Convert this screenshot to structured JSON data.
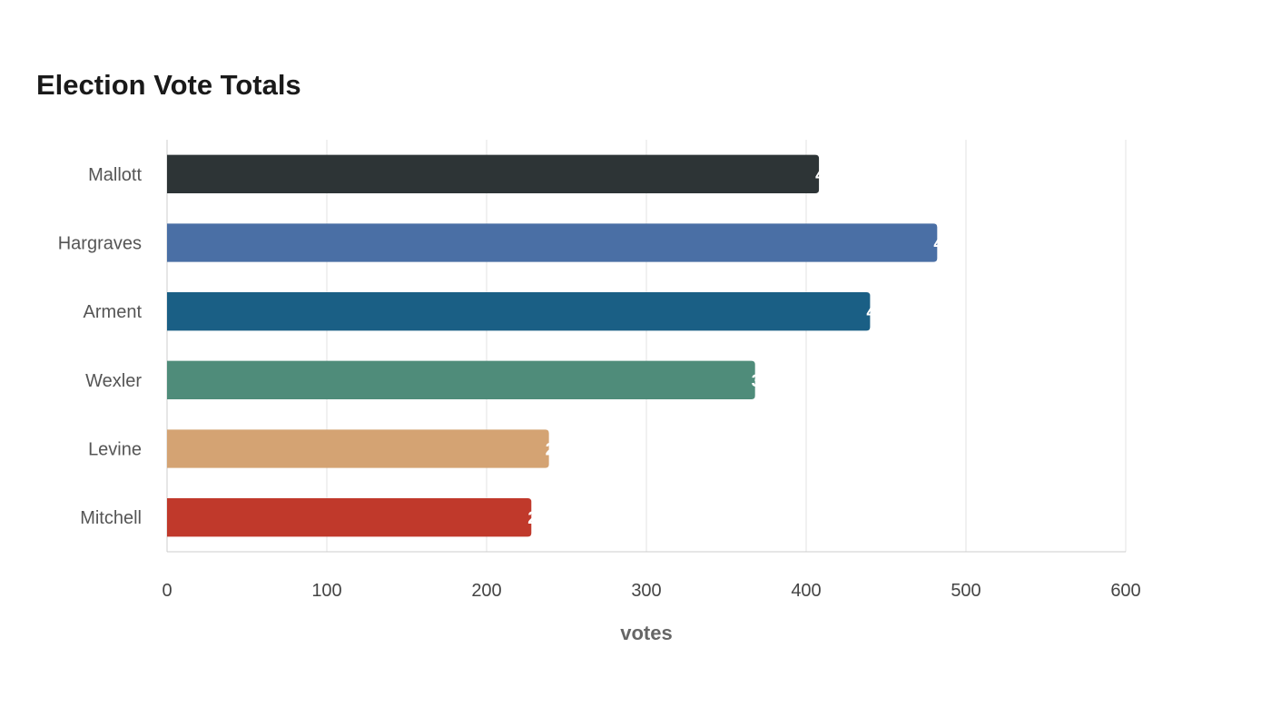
{
  "chart_data": {
    "type": "bar",
    "orientation": "horizontal",
    "title": "Election Vote Totals",
    "xlabel": "votes",
    "ylabel": "",
    "categories": [
      "Mallott",
      "Hargraves",
      "Arment",
      "Wexler",
      "Levine",
      "Mitchell"
    ],
    "values": [
      408,
      482,
      440,
      368,
      239,
      228
    ],
    "colors": [
      "#2d3436",
      "#4a6fa5",
      "#1a5f85",
      "#4f8c7a",
      "#d4a373",
      "#c0392b"
    ],
    "xlim": [
      0,
      600
    ],
    "xticks": [
      "0",
      "100",
      "200",
      "300",
      "400",
      "500",
      "600"
    ],
    "grid": true,
    "legend": "none"
  }
}
